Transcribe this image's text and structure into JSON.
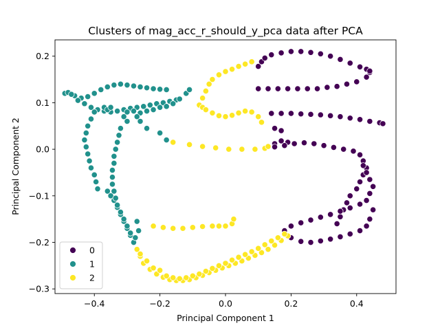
{
  "chart_data": {
    "type": "scatter",
    "title": "Clusters of mag_acc_r_should_y_pca data after PCA",
    "xlabel": "Principal Component 1",
    "ylabel": "Principal Component 2",
    "xlim": [
      -0.52,
      0.52
    ],
    "ylim": [
      -0.31,
      0.235
    ],
    "x_ticks": [
      -0.4,
      -0.2,
      0.0,
      0.2,
      0.4
    ],
    "x_tick_labels": [
      "−0.4",
      "−0.2",
      "0.0",
      "0.2",
      "0.4"
    ],
    "y_ticks": [
      -0.3,
      -0.2,
      -0.1,
      0.0,
      0.1,
      0.2
    ],
    "y_tick_labels": [
      "−0.3",
      "−0.2",
      "−0.1",
      "0.0",
      "0.1",
      "0.2"
    ],
    "grid": false,
    "legend_position": "lower-left",
    "series": [
      {
        "name": "0",
        "color": "#440154",
        "points": [
          [
            0.1,
            0.13
          ],
          [
            0.13,
            0.13
          ],
          [
            0.16,
            0.13
          ],
          [
            0.19,
            0.13
          ],
          [
            0.22,
            0.13
          ],
          [
            0.25,
            0.13
          ],
          [
            0.28,
            0.13
          ],
          [
            0.31,
            0.133
          ],
          [
            0.34,
            0.135
          ],
          [
            0.37,
            0.14
          ],
          [
            0.4,
            0.145
          ],
          [
            0.43,
            0.155
          ],
          [
            0.44,
            0.165
          ],
          [
            0.1,
            0.178
          ],
          [
            0.11,
            0.188
          ],
          [
            0.12,
            0.196
          ],
          [
            0.14,
            0.203
          ],
          [
            0.17,
            0.207
          ],
          [
            0.2,
            0.21
          ],
          [
            0.23,
            0.21
          ],
          [
            0.26,
            0.208
          ],
          [
            0.29,
            0.205
          ],
          [
            0.32,
            0.2
          ],
          [
            0.35,
            0.193
          ],
          [
            0.38,
            0.185
          ],
          [
            0.41,
            0.177
          ],
          [
            0.43,
            0.172
          ],
          [
            0.44,
            0.168
          ],
          [
            0.14,
            0.077
          ],
          [
            0.17,
            0.077
          ],
          [
            0.2,
            0.077
          ],
          [
            0.23,
            0.076
          ],
          [
            0.26,
            0.075
          ],
          [
            0.29,
            0.074
          ],
          [
            0.32,
            0.072
          ],
          [
            0.35,
            0.07
          ],
          [
            0.38,
            0.067
          ],
          [
            0.41,
            0.064
          ],
          [
            0.44,
            0.06
          ],
          [
            0.47,
            0.057
          ],
          [
            0.48,
            0.055
          ],
          [
            0.15,
            0.045
          ],
          [
            0.17,
            0.04
          ],
          [
            0.19,
            0.015
          ],
          [
            0.15,
            0.012
          ],
          [
            0.17,
            0.018
          ],
          [
            0.15,
            0.005
          ],
          [
            0.18,
            0.008
          ],
          [
            0.21,
            0.012
          ],
          [
            0.24,
            0.014
          ],
          [
            0.27,
            0.012
          ],
          [
            0.3,
            0.008
          ],
          [
            0.33,
            0.004
          ],
          [
            0.36,
            0.0
          ],
          [
            0.39,
            -0.004
          ],
          [
            0.41,
            -0.012
          ],
          [
            0.42,
            -0.025
          ],
          [
            0.43,
            -0.04
          ],
          [
            0.42,
            -0.055
          ],
          [
            0.41,
            -0.07
          ],
          [
            0.4,
            -0.085
          ],
          [
            0.38,
            -0.1
          ],
          [
            0.37,
            -0.115
          ],
          [
            0.36,
            -0.13
          ],
          [
            0.35,
            -0.145
          ],
          [
            0.34,
            -0.16
          ],
          [
            0.18,
            -0.175
          ],
          [
            0.2,
            -0.165
          ],
          [
            0.23,
            -0.158
          ],
          [
            0.26,
            -0.152
          ],
          [
            0.29,
            -0.146
          ],
          [
            0.32,
            -0.14
          ],
          [
            0.35,
            -0.133
          ],
          [
            0.38,
            -0.126
          ],
          [
            0.41,
            -0.118
          ],
          [
            0.43,
            -0.11
          ],
          [
            0.44,
            -0.095
          ],
          [
            0.45,
            -0.08
          ],
          [
            0.44,
            -0.065
          ],
          [
            0.43,
            -0.05
          ],
          [
            0.42,
            -0.035
          ],
          [
            0.2,
            -0.19
          ],
          [
            0.23,
            -0.198
          ],
          [
            0.26,
            -0.2
          ],
          [
            0.29,
            -0.197
          ],
          [
            0.32,
            -0.193
          ],
          [
            0.35,
            -0.188
          ],
          [
            0.38,
            -0.182
          ],
          [
            0.41,
            -0.175
          ],
          [
            0.43,
            -0.165
          ],
          [
            0.44,
            -0.15
          ],
          [
            0.45,
            -0.13
          ]
        ]
      },
      {
        "name": "1",
        "color": "#21918c",
        "points": [
          [
            -0.49,
            0.12
          ],
          [
            -0.46,
            0.115
          ],
          [
            -0.44,
            0.11
          ],
          [
            -0.42,
            0.113
          ],
          [
            -0.4,
            0.12
          ],
          [
            -0.38,
            0.128
          ],
          [
            -0.36,
            0.134
          ],
          [
            -0.34,
            0.138
          ],
          [
            -0.32,
            0.14
          ],
          [
            -0.3,
            0.138
          ],
          [
            -0.28,
            0.136
          ],
          [
            -0.26,
            0.134
          ],
          [
            -0.24,
            0.132
          ],
          [
            -0.22,
            0.13
          ],
          [
            -0.2,
            0.129
          ],
          [
            -0.18,
            0.128
          ],
          [
            -0.48,
            0.122
          ],
          [
            -0.47,
            0.118
          ],
          [
            -0.45,
            0.105
          ],
          [
            -0.43,
            0.098
          ],
          [
            -0.41,
            0.09
          ],
          [
            -0.39,
            0.085
          ],
          [
            -0.37,
            0.082
          ],
          [
            -0.35,
            0.08
          ],
          [
            -0.33,
            0.082
          ],
          [
            -0.31,
            0.085
          ],
          [
            -0.29,
            0.088
          ],
          [
            -0.27,
            0.09
          ],
          [
            -0.25,
            0.092
          ],
          [
            -0.23,
            0.095
          ],
          [
            -0.21,
            0.098
          ],
          [
            -0.19,
            0.1
          ],
          [
            -0.17,
            0.103
          ],
          [
            -0.15,
            0.106
          ],
          [
            -0.37,
            0.09
          ],
          [
            -0.36,
            0.085
          ],
          [
            -0.35,
            0.09
          ],
          [
            -0.3,
            0.08
          ],
          [
            -0.28,
            0.082
          ],
          [
            -0.26,
            0.078
          ],
          [
            -0.24,
            0.082
          ],
          [
            -0.22,
            0.085
          ],
          [
            -0.2,
            0.09
          ],
          [
            -0.18,
            0.092
          ],
          [
            -0.16,
            0.098
          ],
          [
            -0.14,
            0.108
          ],
          [
            -0.12,
            0.12
          ],
          [
            -0.11,
            0.128
          ],
          [
            -0.24,
            0.045
          ],
          [
            -0.2,
            0.035
          ],
          [
            -0.18,
            0.02
          ],
          [
            -0.4,
            0.08
          ],
          [
            -0.41,
            0.065
          ],
          [
            -0.42,
            0.05
          ],
          [
            -0.425,
            0.035
          ],
          [
            -0.43,
            0.02
          ],
          [
            -0.425,
            0.005
          ],
          [
            -0.42,
            -0.01
          ],
          [
            -0.415,
            -0.025
          ],
          [
            -0.41,
            -0.04
          ],
          [
            -0.4,
            -0.055
          ],
          [
            -0.395,
            -0.07
          ],
          [
            -0.39,
            -0.085
          ],
          [
            -0.36,
            -0.09
          ],
          [
            -0.35,
            -0.1
          ],
          [
            -0.34,
            -0.11
          ],
          [
            -0.33,
            -0.125
          ],
          [
            -0.32,
            -0.14
          ],
          [
            -0.31,
            -0.155
          ],
          [
            -0.3,
            -0.17
          ],
          [
            -0.29,
            -0.185
          ],
          [
            -0.28,
            -0.2
          ],
          [
            -0.32,
            0.045
          ],
          [
            -0.325,
            0.03
          ],
          [
            -0.33,
            0.015
          ],
          [
            -0.335,
            0.0
          ],
          [
            -0.34,
            -0.015
          ],
          [
            -0.34,
            -0.03
          ],
          [
            -0.345,
            -0.045
          ],
          [
            -0.345,
            -0.06
          ],
          [
            -0.345,
            -0.075
          ],
          [
            -0.34,
            -0.09
          ],
          [
            -0.335,
            -0.105
          ],
          [
            -0.33,
            -0.12
          ],
          [
            -0.32,
            -0.135
          ],
          [
            -0.31,
            -0.15
          ],
          [
            -0.3,
            -0.165
          ],
          [
            -0.29,
            -0.18
          ],
          [
            -0.275,
            -0.19
          ],
          [
            -0.3,
            0.06
          ],
          [
            -0.31,
            0.07
          ],
          [
            -0.27,
            0.07
          ],
          [
            -0.26,
            0.06
          ],
          [
            -0.27,
            -0.155
          ],
          [
            -0.265,
            -0.175
          ]
        ]
      },
      {
        "name": "2",
        "color": "#fde725",
        "points": [
          [
            -0.08,
            0.095
          ],
          [
            -0.07,
            0.11
          ],
          [
            -0.06,
            0.125
          ],
          [
            -0.05,
            0.14
          ],
          [
            -0.04,
            0.15
          ],
          [
            -0.02,
            0.16
          ],
          [
            0.0,
            0.167
          ],
          [
            0.02,
            0.172
          ],
          [
            0.04,
            0.178
          ],
          [
            0.06,
            0.183
          ],
          [
            0.08,
            0.188
          ],
          [
            -0.07,
            0.09
          ],
          [
            -0.06,
            0.085
          ],
          [
            -0.04,
            0.078
          ],
          [
            -0.02,
            0.072
          ],
          [
            0.0,
            0.07
          ],
          [
            0.02,
            0.073
          ],
          [
            0.04,
            0.078
          ],
          [
            0.06,
            0.082
          ],
          [
            0.08,
            0.08
          ],
          [
            0.1,
            0.07
          ],
          [
            0.11,
            0.058
          ],
          [
            -0.16,
            0.015
          ],
          [
            -0.11,
            0.01
          ],
          [
            -0.07,
            0.006
          ],
          [
            -0.03,
            0.003
          ],
          [
            0.01,
            0.0
          ],
          [
            0.05,
            0.0
          ],
          [
            0.09,
            0.0
          ],
          [
            0.12,
            0.002
          ],
          [
            0.13,
            0.006
          ],
          [
            -0.22,
            -0.165
          ],
          [
            -0.19,
            -0.168
          ],
          [
            -0.16,
            -0.17
          ],
          [
            -0.13,
            -0.17
          ],
          [
            -0.1,
            -0.168
          ],
          [
            -0.07,
            -0.166
          ],
          [
            -0.04,
            -0.165
          ],
          [
            -0.02,
            -0.165
          ],
          [
            0.0,
            -0.165
          ],
          [
            0.02,
            -0.16
          ],
          [
            0.025,
            -0.15
          ],
          [
            -0.27,
            -0.215
          ],
          [
            -0.26,
            -0.23
          ],
          [
            -0.25,
            -0.245
          ],
          [
            -0.23,
            -0.258
          ],
          [
            -0.21,
            -0.268
          ],
          [
            -0.19,
            -0.275
          ],
          [
            -0.17,
            -0.28
          ],
          [
            -0.15,
            -0.282
          ],
          [
            -0.13,
            -0.282
          ],
          [
            -0.11,
            -0.28
          ],
          [
            -0.09,
            -0.276
          ],
          [
            -0.07,
            -0.271
          ],
          [
            -0.05,
            -0.265
          ],
          [
            -0.03,
            -0.26
          ],
          [
            -0.01,
            -0.255
          ],
          [
            0.01,
            -0.25
          ],
          [
            0.03,
            -0.245
          ],
          [
            0.05,
            -0.24
          ],
          [
            0.07,
            -0.234
          ],
          [
            0.09,
            -0.228
          ],
          [
            0.11,
            -0.222
          ],
          [
            0.13,
            -0.215
          ],
          [
            0.15,
            -0.206
          ],
          [
            0.17,
            -0.196
          ],
          [
            0.19,
            -0.186
          ],
          [
            -0.26,
            -0.225
          ],
          [
            -0.24,
            -0.24
          ],
          [
            -0.22,
            -0.255
          ],
          [
            -0.2,
            -0.26
          ],
          [
            -0.18,
            -0.272
          ],
          [
            -0.16,
            -0.276
          ],
          [
            -0.14,
            -0.278
          ],
          [
            -0.12,
            -0.276
          ],
          [
            -0.1,
            -0.272
          ],
          [
            -0.08,
            -0.268
          ],
          [
            -0.06,
            -0.262
          ],
          [
            -0.04,
            -0.256
          ],
          [
            -0.02,
            -0.25
          ],
          [
            0.0,
            -0.245
          ],
          [
            0.02,
            -0.238
          ],
          [
            0.04,
            -0.232
          ],
          [
            0.06,
            -0.226
          ],
          [
            0.08,
            -0.22
          ],
          [
            0.1,
            -0.213
          ],
          [
            0.12,
            -0.205
          ],
          [
            0.14,
            -0.197
          ],
          [
            0.16,
            -0.19
          ],
          [
            0.18,
            -0.182
          ]
        ]
      }
    ]
  }
}
